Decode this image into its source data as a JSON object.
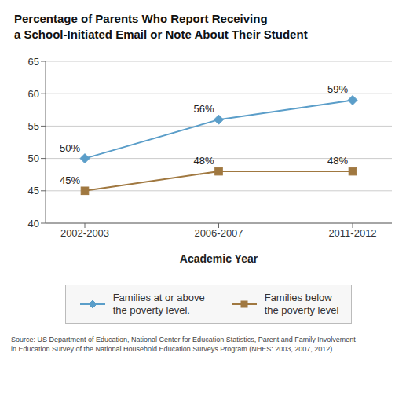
{
  "chart_data": {
    "type": "line",
    "title": "Percentage of Parents Who Report Receiving\na School-Initiated Email or Note About Their Student",
    "x_label": "Academic Year",
    "categories": [
      "2002-2003",
      "2006-2007",
      "2011-2012"
    ],
    "series": [
      {
        "name": "Families at or above\nthe poverty level.",
        "color": "#5b9ec9",
        "marker": "diamond",
        "values": [
          50,
          56,
          59
        ],
        "value_labels": [
          "50%",
          "56%",
          "59%"
        ]
      },
      {
        "name": "Families below\nthe poverty level",
        "color": "#a07840",
        "marker": "square",
        "values": [
          45,
          48,
          48
        ],
        "value_labels": [
          "45%",
          "48%",
          "48%"
        ]
      }
    ],
    "ylim": [
      40,
      65
    ],
    "yticks": [
      40,
      45,
      50,
      55,
      60,
      65
    ],
    "grid": true,
    "legend": "bottom",
    "data_labels": true,
    "annotations": [
      "Source: US Department of Education, National Center for Education Statistics, Parent and Family Involvement\nin Education Survey of the National Household Education Surveys Program (NHES: 2003, 2007, 2012)."
    ]
  }
}
